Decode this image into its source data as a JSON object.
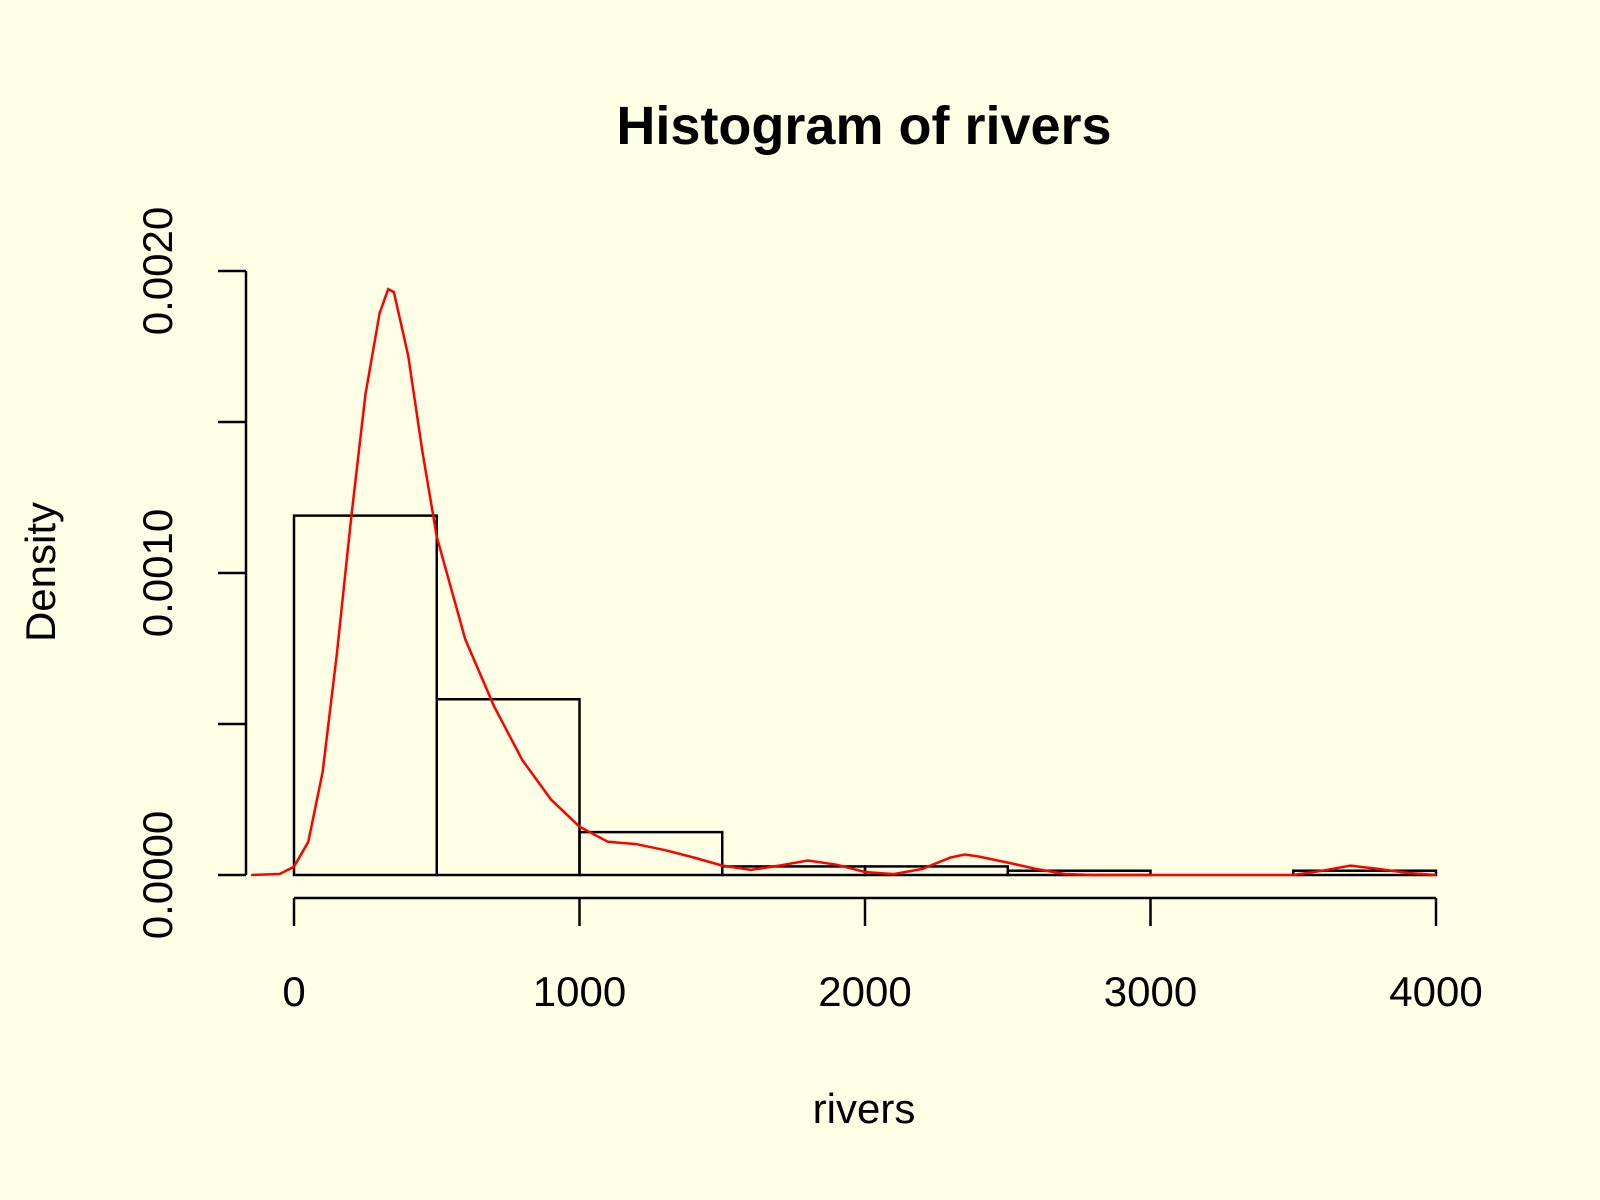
{
  "chart_data": {
    "type": "bar",
    "title": "Histogram of rivers",
    "xlabel": "rivers",
    "ylabel": "Density",
    "bins": [
      {
        "from": 0,
        "to": 500,
        "density": 0.00119
      },
      {
        "from": 500,
        "to": 1000,
        "density": 0.000582
      },
      {
        "from": 1000,
        "to": 1500,
        "density": 0.000142
      },
      {
        "from": 1500,
        "to": 2000,
        "density": 2.84e-05
      },
      {
        "from": 2000,
        "to": 2500,
        "density": 2.84e-05
      },
      {
        "from": 2500,
        "to": 3000,
        "density": 1.42e-05
      },
      {
        "from": 3000,
        "to": 3500,
        "density": 0
      },
      {
        "from": 3500,
        "to": 4000,
        "density": 1.42e-05
      }
    ],
    "xlim": [
      -150,
      4200
    ],
    "ylim": [
      0,
      0.002
    ],
    "x_ticks": [
      0,
      1000,
      2000,
      3000,
      4000
    ],
    "x_tick_labels": [
      "0",
      "1000",
      "2000",
      "3000",
      "4000"
    ],
    "y_ticks": [
      0,
      0.0005,
      0.001,
      0.0015,
      0.002
    ],
    "y_tick_labels": [
      "0.0000",
      "",
      "0.0010",
      "",
      "0.0020"
    ],
    "density_curve": {
      "color": "#FF0000",
      "x": [
        -150,
        -50,
        0,
        50,
        100,
        150,
        200,
        250,
        300,
        330,
        350,
        400,
        450,
        500,
        600,
        700,
        800,
        900,
        1000,
        1100,
        1200,
        1300,
        1400,
        1500,
        1600,
        1700,
        1800,
        1900,
        2000,
        2100,
        2200,
        2300,
        2350,
        2400,
        2500,
        2600,
        2700,
        2800,
        3000,
        3200,
        3400,
        3500,
        3600,
        3700,
        3800,
        3900,
        4000
      ],
      "y": [
        0,
        3.4e-06,
        2.7e-05,
        0.00011,
        0.00034,
        0.00073,
        0.00118,
        0.00159,
        0.00186,
        0.00194,
        0.00193,
        0.00172,
        0.0014,
        0.00112,
        0.00078,
        0.00056,
        0.00038,
        0.00025,
        0.00016,
        0.00011,
        0.000102,
        8.2e-05,
        5.8e-05,
        3.1e-05,
        1.7e-05,
        3.1e-05,
        4.8e-05,
        3.4e-05,
        1e-05,
        3e-06,
        2e-05,
        5.8e-05,
        6.8e-05,
        6.1e-05,
        4.1e-05,
        2e-05,
        3.4e-06,
        0,
        0,
        0,
        0,
        0,
        1.4e-05,
        3.1e-05,
        2e-05,
        6.8e-06,
        0
      ]
    }
  }
}
